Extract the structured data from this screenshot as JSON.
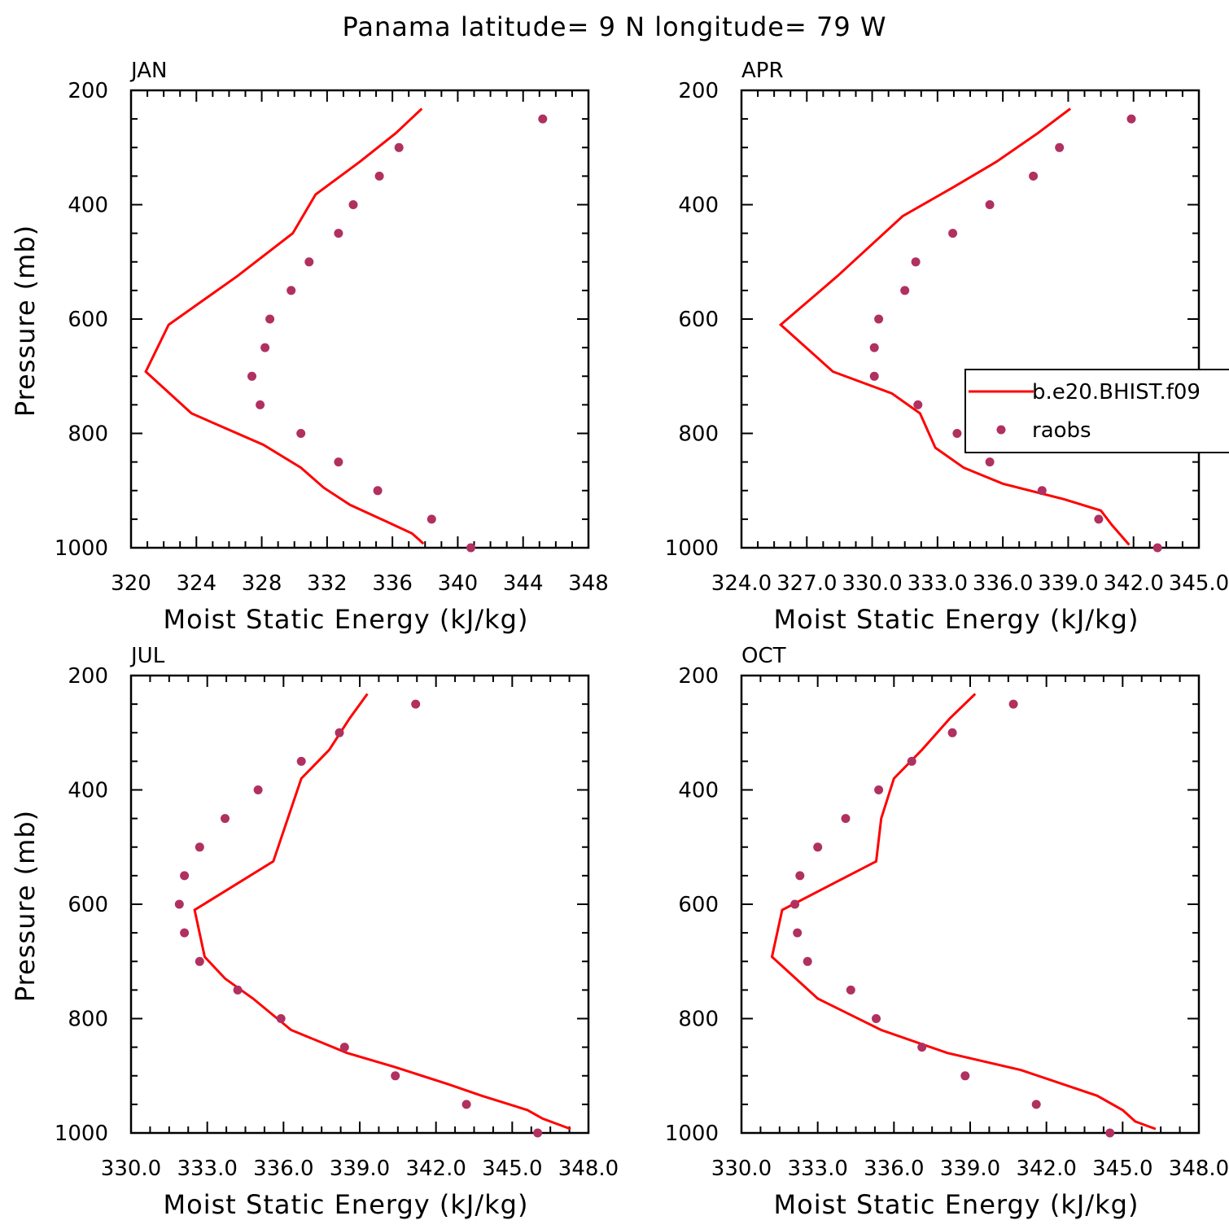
{
  "figure_title": "Panama  latitude= 9 N longitude= 79 W",
  "legend": {
    "model_label": "b.e20.BHIST.f09",
    "obs_label": "raobs"
  },
  "colors": {
    "model_line": "#ff0000",
    "obs_points": "#b03060"
  },
  "chart_data": [
    {
      "type": "line",
      "title": "JAN",
      "xlabel": "Moist Static Energy (kJ/kg)",
      "ylabel": "Pressure (mb)",
      "xlim": [
        320,
        348
      ],
      "ylim": [
        1000,
        200
      ],
      "xticks": [
        320,
        324,
        328,
        332,
        336,
        340,
        344,
        348
      ],
      "xtick_labels": [
        "320",
        "324",
        "328",
        "332",
        "336",
        "340",
        "344",
        "348"
      ],
      "yticks": [
        200,
        400,
        600,
        800,
        1000
      ],
      "ytick_labels": [
        "200",
        "400",
        "600",
        "800",
        "1000"
      ],
      "series": [
        {
          "name": "b.e20.BHIST.f09",
          "kind": "line",
          "x": [
            337.8,
            336.2,
            334.0,
            331.3,
            329.9,
            326.5,
            322.3,
            320.9,
            323.7,
            328.1,
            330.4,
            331.8,
            333.4,
            335.7,
            337.2,
            337.6,
            337.9
          ],
          "y": [
            232,
            275,
            325,
            382,
            450,
            525,
            610,
            692,
            765,
            820,
            860,
            895,
            925,
            955,
            975,
            985,
            993
          ]
        },
        {
          "name": "raobs",
          "kind": "scatter",
          "x": [
            345.2,
            336.4,
            335.2,
            333.6,
            332.7,
            330.9,
            329.8,
            328.5,
            328.2,
            327.4,
            327.9,
            330.4,
            332.7,
            335.1,
            338.4,
            340.8
          ],
          "y": [
            250,
            300,
            350,
            400,
            450,
            500,
            550,
            600,
            650,
            700,
            750,
            800,
            850,
            900,
            950,
            1000
          ]
        }
      ]
    },
    {
      "type": "line",
      "title": "APR",
      "xlabel": "Moist Static Energy (kJ/kg)",
      "ylabel": "",
      "xlim": [
        324,
        345
      ],
      "ylim": [
        1000,
        200
      ],
      "xticks": [
        324,
        327,
        330,
        333,
        336,
        339,
        342,
        345
      ],
      "xtick_labels": [
        "324.0",
        "327.0",
        "330.0",
        "333.0",
        "336.0",
        "339.0",
        "342.0",
        "345.0"
      ],
      "yticks": [
        200,
        400,
        600,
        800,
        1000
      ],
      "ytick_labels": [
        "200",
        "400",
        "600",
        "800",
        "1000"
      ],
      "series": [
        {
          "name": "b.e20.BHIST.f09",
          "kind": "line",
          "x": [
            339.1,
            337.6,
            335.7,
            333.7,
            331.4,
            328.4,
            325.8,
            328.2,
            330.9,
            332.2,
            332.9,
            334.2,
            336.0,
            338.8,
            340.5,
            341.0,
            341.8
          ],
          "y": [
            232,
            275,
            325,
            370,
            420,
            525,
            610,
            692,
            730,
            765,
            825,
            860,
            888,
            915,
            935,
            960,
            995
          ]
        },
        {
          "name": "raobs",
          "kind": "scatter",
          "x": [
            341.9,
            338.6,
            337.4,
            335.4,
            333.7,
            332.0,
            331.5,
            330.3,
            330.1,
            330.1,
            332.1,
            333.9,
            335.4,
            337.8,
            340.4,
            343.1
          ],
          "y": [
            250,
            300,
            350,
            400,
            450,
            500,
            550,
            600,
            650,
            700,
            750,
            800,
            850,
            900,
            950,
            1000
          ]
        }
      ]
    },
    {
      "type": "line",
      "title": "JUL",
      "xlabel": "Moist Static Energy (kJ/kg)",
      "ylabel": "Pressure (mb)",
      "xlim": [
        330,
        348
      ],
      "ylim": [
        1000,
        200
      ],
      "xticks": [
        330,
        333,
        336,
        339,
        342,
        345,
        348
      ],
      "xtick_labels": [
        "330.0",
        "333.0",
        "336.0",
        "339.0",
        "342.0",
        "345.0",
        "348.0"
      ],
      "yticks": [
        200,
        400,
        600,
        800,
        1000
      ],
      "ytick_labels": [
        "200",
        "400",
        "600",
        "800",
        "1000"
      ],
      "series": [
        {
          "name": "b.e20.BHIST.f09",
          "kind": "line",
          "x": [
            339.3,
            338.6,
            337.8,
            336.7,
            335.6,
            332.5,
            332.9,
            333.7,
            334.8,
            336.3,
            338.5,
            340.4,
            342.5,
            343.8,
            345.6,
            346.2,
            347.3
          ],
          "y": [
            232,
            275,
            330,
            380,
            525,
            610,
            692,
            730,
            765,
            820,
            860,
            885,
            915,
            935,
            960,
            975,
            993
          ]
        },
        {
          "name": "raobs",
          "kind": "scatter",
          "x": [
            341.2,
            338.2,
            336.7,
            335.0,
            333.7,
            332.7,
            332.1,
            331.9,
            332.1,
            332.7,
            334.2,
            335.9,
            338.4,
            340.4,
            343.2,
            346.0
          ],
          "y": [
            250,
            300,
            350,
            400,
            450,
            500,
            550,
            600,
            650,
            700,
            750,
            800,
            850,
            900,
            950,
            1000
          ]
        }
      ]
    },
    {
      "type": "line",
      "title": "OCT",
      "xlabel": "Moist Static Energy (kJ/kg)",
      "ylabel": "",
      "xlim": [
        330,
        348
      ],
      "ylim": [
        1000,
        200
      ],
      "xticks": [
        330,
        333,
        336,
        339,
        342,
        345,
        348
      ],
      "xtick_labels": [
        "330.0",
        "333.0",
        "336.0",
        "339.0",
        "342.0",
        "345.0",
        "348.0"
      ],
      "yticks": [
        200,
        400,
        600,
        800,
        1000
      ],
      "ytick_labels": [
        "200",
        "400",
        "600",
        "800",
        "1000"
      ],
      "series": [
        {
          "name": "b.e20.BHIST.f09",
          "kind": "line",
          "x": [
            339.2,
            338.2,
            337.1,
            336.0,
            335.5,
            335.3,
            331.6,
            331.2,
            333.0,
            335.5,
            338.1,
            341.0,
            344.0,
            345.0,
            345.5,
            346.3
          ],
          "y": [
            232,
            275,
            330,
            380,
            450,
            525,
            610,
            692,
            765,
            820,
            860,
            890,
            935,
            960,
            980,
            993
          ]
        },
        {
          "name": "raobs",
          "kind": "scatter",
          "x": [
            340.7,
            338.3,
            336.7,
            335.4,
            334.1,
            333.0,
            332.3,
            332.1,
            332.2,
            332.6,
            334.3,
            335.3,
            337.1,
            338.8,
            341.6,
            344.5
          ],
          "y": [
            250,
            300,
            350,
            400,
            450,
            500,
            550,
            600,
            650,
            700,
            750,
            800,
            850,
            900,
            950,
            1000
          ]
        }
      ]
    }
  ]
}
